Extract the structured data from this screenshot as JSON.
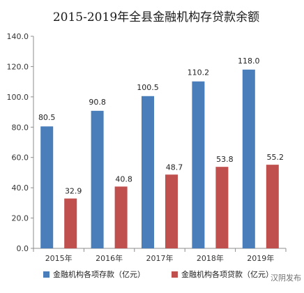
{
  "chart_data": {
    "type": "bar",
    "title": "2015-2019年全县金融机构存贷款余额",
    "categories": [
      "2015年",
      "2016年",
      "2017年",
      "2018年",
      "2019年"
    ],
    "series": [
      {
        "name": "金融机构各项存款（亿元）",
        "color": "#4a7ebb",
        "values": [
          80.5,
          90.8,
          100.5,
          110.2,
          118.0
        ]
      },
      {
        "name": "金融机构各项贷款（亿元）",
        "color": "#c0504d",
        "values": [
          32.9,
          40.8,
          48.7,
          53.8,
          55.2
        ]
      }
    ],
    "ylim": [
      0,
      140
    ],
    "yticks": [
      "0.0",
      "20.0",
      "40.0",
      "60.0",
      "80.0",
      "100.0",
      "120.0",
      "140.0"
    ],
    "xlabel": "",
    "ylabel": "",
    "grid": false,
    "legend_position": "bottom"
  },
  "watermark": "汉阴发布"
}
